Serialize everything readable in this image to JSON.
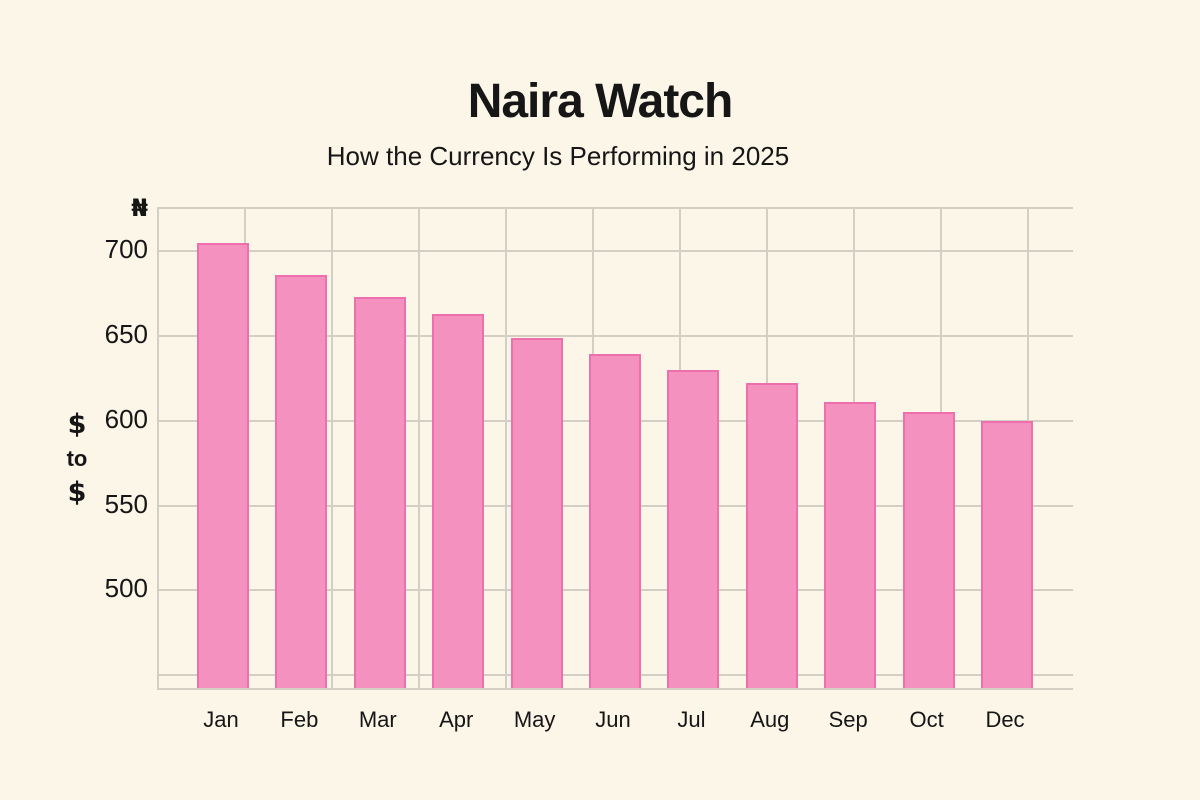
{
  "header": {
    "title": "Naira Watch",
    "subtitle": "How the Currency Is Performing in 2025"
  },
  "y_axis": {
    "unit_symbol": "₦",
    "label_text": "$ to $",
    "label_lines": [
      "$",
      "to",
      "$"
    ]
  },
  "chart_data": {
    "type": "bar",
    "title": "Naira Watch",
    "subtitle": "How the Currency Is Performing in 2025",
    "categories": [
      "Jan",
      "Feb",
      "Mar",
      "Apr",
      "May",
      "Jun",
      "Jul",
      "Aug",
      "Sep",
      "Oct",
      "Dec"
    ],
    "values": [
      704,
      685,
      672,
      662,
      648,
      638,
      629,
      621,
      610,
      604,
      599
    ],
    "xlabel": "",
    "ylabel": "$ to $",
    "yticks": [
      700,
      650,
      600,
      550,
      500
    ],
    "extra_gridlines": [
      450
    ],
    "ylim": [
      440,
      725
    ],
    "grid": true,
    "legend": false,
    "colors": {
      "background": "#FBF6E8",
      "text": "#161616",
      "grid": "#D3CFC4",
      "bar_fill": "#F591BE",
      "bar_border": "#EE6FAE"
    }
  }
}
